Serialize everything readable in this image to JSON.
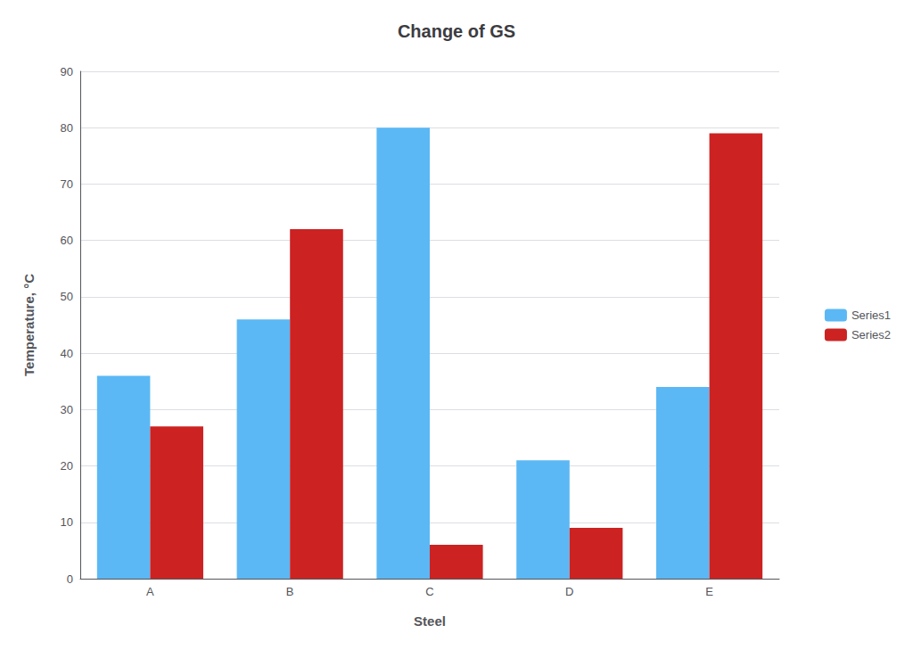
{
  "chart_data": {
    "type": "bar",
    "title": "Change of GS",
    "xlabel": "Steel",
    "ylabel": "Temperature, °C",
    "categories": [
      "A",
      "B",
      "C",
      "D",
      "E"
    ],
    "series": [
      {
        "name": "Series1",
        "color": "#5BB8F5",
        "values": [
          36,
          46,
          80,
          21,
          34
        ]
      },
      {
        "name": "Series2",
        "color": "#CC2222",
        "values": [
          27,
          62,
          6,
          9,
          79
        ]
      }
    ],
    "ylim": [
      0,
      90
    ],
    "yticks": [
      0,
      10,
      20,
      30,
      40,
      50,
      60,
      70,
      80,
      90
    ],
    "grid": true,
    "legend": "right"
  }
}
